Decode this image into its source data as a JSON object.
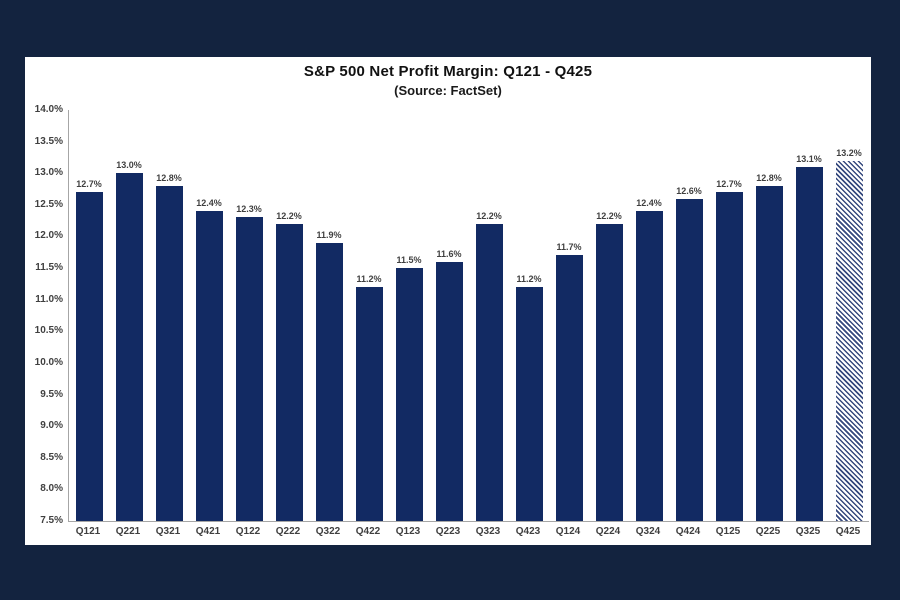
{
  "window": {
    "background_color": "#13233f",
    "panel_background_color": "#ffffff"
  },
  "chart": {
    "title": "S&P 500 Net Profit Margin: Q121 - Q425",
    "subtitle": "(Source: FactSet)"
  },
  "chart_data": {
    "type": "bar",
    "title": "S&P 500 Net Profit Margin: Q121 - Q425",
    "subtitle": "(Source: FactSet)",
    "categories": [
      "Q121",
      "Q221",
      "Q321",
      "Q421",
      "Q122",
      "Q222",
      "Q322",
      "Q422",
      "Q123",
      "Q223",
      "Q323",
      "Q423",
      "Q124",
      "Q224",
      "Q324",
      "Q424",
      "Q125",
      "Q225",
      "Q325",
      "Q425"
    ],
    "values": [
      12.7,
      13.0,
      12.8,
      12.4,
      12.3,
      12.2,
      11.9,
      11.2,
      11.5,
      11.6,
      12.2,
      11.2,
      11.7,
      12.2,
      12.4,
      12.6,
      12.7,
      12.8,
      13.1,
      13.2
    ],
    "labels": [
      "12.7%",
      "13.0%",
      "12.8%",
      "12.4%",
      "12.3%",
      "12.2%",
      "11.9%",
      "11.2%",
      "11.5%",
      "11.6%",
      "12.2%",
      "11.2%",
      "11.7%",
      "12.2%",
      "12.4%",
      "12.6%",
      "12.7%",
      "12.8%",
      "13.1%",
      "13.2%"
    ],
    "xlabel": "",
    "ylabel": "",
    "ylim": [
      7.5,
      14.0
    ],
    "yticks": [
      "14.0%",
      "13.5%",
      "13.0%",
      "12.5%",
      "12.0%",
      "11.5%",
      "11.0%",
      "10.5%",
      "10.0%",
      "9.5%",
      "9.0%",
      "8.5%",
      "8.0%",
      "7.5%"
    ],
    "grid": false,
    "legend": "none",
    "bar_color": "#122a63",
    "hatched_category": "Q425"
  }
}
